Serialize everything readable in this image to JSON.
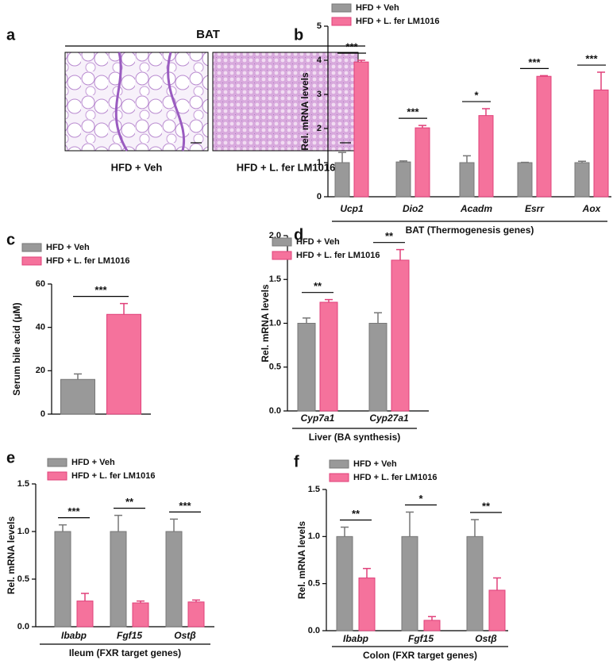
{
  "chart_data": [
    {
      "panel": "a",
      "type": "image",
      "title": "BAT",
      "captions": [
        "HFD + Veh",
        "HFD + L. fer LM1016"
      ]
    },
    {
      "panel": "b",
      "type": "bar",
      "ylabel": "Rel. mRNA levels",
      "xlabel": "BAT (Thermogenesis genes)",
      "categories": [
        "Ucp1",
        "Dio2",
        "Acadm",
        "Esrr",
        "Aox"
      ],
      "series": [
        {
          "name": "HFD + Veh",
          "color": "#999999",
          "values": [
            1.0,
            1.02,
            1.0,
            1.0,
            1.0
          ],
          "errors": [
            0.3,
            0.03,
            0.2,
            0.01,
            0.04
          ]
        },
        {
          "name": "HFD + L. fer LM1016",
          "color": "#f5729c",
          "values": [
            3.95,
            2.02,
            2.38,
            3.53,
            3.13
          ],
          "errors": [
            0.05,
            0.07,
            0.2,
            0.02,
            0.52
          ]
        }
      ],
      "significance": [
        "***",
        "***",
        "*",
        "***",
        "***"
      ],
      "ylim": [
        0,
        5
      ],
      "yticks": [
        0,
        1,
        2,
        3,
        4,
        5
      ]
    },
    {
      "panel": "c",
      "type": "bar",
      "ylabel": "Serum bile acid (μM)",
      "series": [
        {
          "name": "HFD + Veh",
          "color": "#999999",
          "values": [
            16
          ],
          "errors": [
            2.5
          ]
        },
        {
          "name": "HFD + L. fer LM1016",
          "color": "#f5729c",
          "values": [
            46
          ],
          "errors": [
            5
          ]
        }
      ],
      "significance": [
        "***"
      ],
      "ylim": [
        0,
        60
      ],
      "yticks": [
        0,
        20,
        40,
        60
      ]
    },
    {
      "panel": "d",
      "type": "bar",
      "ylabel": "Rel. mRNA levels",
      "xlabel": "Liver (BA synthesis)",
      "categories": [
        "Cyp7a1",
        "Cyp27a1"
      ],
      "series": [
        {
          "name": "HFD + Veh",
          "color": "#999999",
          "values": [
            1.0,
            1.0
          ],
          "errors": [
            0.06,
            0.12
          ]
        },
        {
          "name": "HFD + L. fer LM1016",
          "color": "#f5729c",
          "values": [
            1.24,
            1.72
          ],
          "errors": [
            0.03,
            0.12
          ]
        }
      ],
      "significance": [
        "**",
        "**"
      ],
      "ylim": [
        0,
        2
      ],
      "yticks": [
        {
          "value": 0,
          "label": "0.0"
        },
        0.5,
        {
          "value": 1,
          "label": "1.0"
        },
        1.5,
        {
          "value": 2,
          "label": "2.0"
        }
      ]
    },
    {
      "panel": "e",
      "type": "bar",
      "ylabel": "Rel. mRNA levels",
      "xlabel": "Ileum (FXR target genes)",
      "categories": [
        "Ibabp",
        "Fgf15",
        "Ostβ"
      ],
      "series": [
        {
          "name": "HFD + Veh",
          "color": "#999999",
          "values": [
            1.0,
            1.0,
            1.0
          ],
          "errors": [
            0.07,
            0.17,
            0.13
          ]
        },
        {
          "name": "HFD + L. fer LM1016",
          "color": "#f5729c",
          "values": [
            0.27,
            0.25,
            0.26
          ],
          "errors": [
            0.08,
            0.02,
            0.02
          ]
        }
      ],
      "significance": [
        "***",
        "**",
        "***"
      ],
      "ylim": [
        0,
        1.5
      ],
      "yticks": [
        {
          "value": 0,
          "label": "0.0"
        },
        0.5,
        {
          "value": 1,
          "label": "1.0"
        },
        1.5
      ]
    },
    {
      "panel": "f",
      "type": "bar",
      "ylabel": "Rel. mRNA levels",
      "xlabel": "Colon (FXR target genes)",
      "categories": [
        "Ibabp",
        "Fgf15",
        "Ostβ"
      ],
      "series": [
        {
          "name": "HFD + Veh",
          "color": "#999999",
          "values": [
            1.0,
            1.0,
            1.0
          ],
          "errors": [
            0.1,
            0.26,
            0.18
          ]
        },
        {
          "name": "HFD + L. fer LM1016",
          "color": "#f5729c",
          "values": [
            0.56,
            0.11,
            0.43
          ],
          "errors": [
            0.1,
            0.04,
            0.13
          ]
        }
      ],
      "significance": [
        "**",
        "*",
        "**"
      ],
      "ylim": [
        0,
        1.5
      ],
      "yticks": [
        {
          "value": 0,
          "label": "0.0"
        },
        0.5,
        {
          "value": 1,
          "label": "1.0"
        },
        1.5
      ]
    }
  ]
}
